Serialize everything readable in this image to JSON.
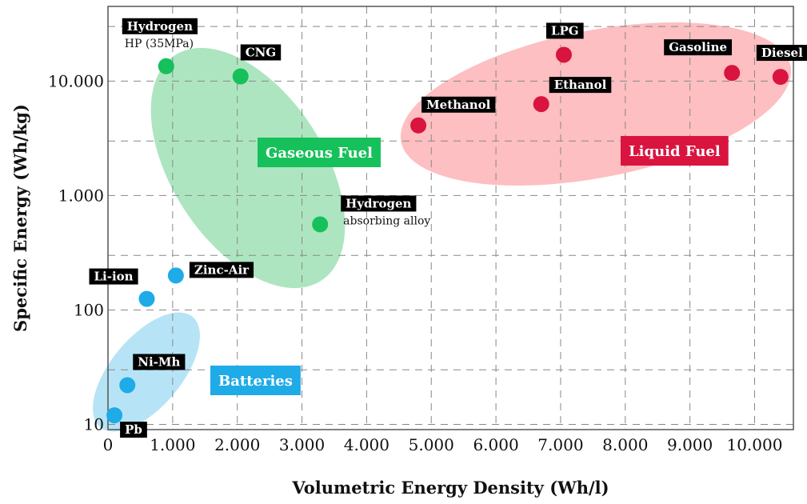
{
  "chart_data": {
    "type": "scatter",
    "xlabel": "Volumetric Energy Density (Wh/l)",
    "ylabel": "Specific Energy (Wh/kg)",
    "xlim": [
      0,
      10600
    ],
    "ylim": [
      9,
      45000
    ],
    "y_scale": "log",
    "x_ticks": [
      0,
      1000,
      2000,
      3000,
      4000,
      5000,
      6000,
      7000,
      8000,
      9000,
      10000
    ],
    "x_tick_labels": [
      "0",
      "1.000",
      "2.000",
      "3.000",
      "4.000",
      "5.000",
      "6.000",
      "7.000",
      "8.000",
      "9.000",
      "10.000"
    ],
    "y_ticks": [
      10,
      100,
      1000,
      10000
    ],
    "y_tick_labels": [
      "10",
      "100",
      "1.000",
      "10.000"
    ],
    "grid": true,
    "groups": [
      {
        "name": "Batteries",
        "color": "#1eabe8",
        "fill": "#a9dff5"
      },
      {
        "name": "Gaseous Fuel",
        "color": "#16c05a",
        "fill": "#9fe0b5"
      },
      {
        "name": "Liquid Fuel",
        "color": "#d9143e",
        "fill": "#fdb4b6"
      }
    ],
    "points": [
      {
        "label": "Hydrogen",
        "sublabel": "HP (35MPa)",
        "group": "Gaseous Fuel",
        "x": 900,
        "y": 13500
      },
      {
        "label": "CNG",
        "sublabel": "",
        "group": "Gaseous Fuel",
        "x": 2050,
        "y": 11000
      },
      {
        "label": "Hydrogen",
        "sublabel": "absorbing alloy",
        "group": "Gaseous Fuel",
        "x": 3280,
        "y": 560
      },
      {
        "label": "LPG",
        "sublabel": "",
        "group": "Liquid Fuel",
        "x": 7050,
        "y": 17000
      },
      {
        "label": "Gasoline",
        "sublabel": "",
        "group": "Liquid Fuel",
        "x": 9650,
        "y": 11800
      },
      {
        "label": "Diesel",
        "sublabel": "",
        "group": "Liquid Fuel",
        "x": 10400,
        "y": 10900
      },
      {
        "label": "Ethanol",
        "sublabel": "",
        "group": "Liquid Fuel",
        "x": 6700,
        "y": 6300
      },
      {
        "label": "Methanol",
        "sublabel": "",
        "group": "Liquid Fuel",
        "x": 4800,
        "y": 4100
      },
      {
        "label": "Zinc-Air",
        "sublabel": "",
        "group": "Batteries",
        "x": 1050,
        "y": 200
      },
      {
        "label": "Li-ion",
        "sublabel": "",
        "group": "Batteries",
        "x": 600,
        "y": 125
      },
      {
        "label": "Ni-Mh",
        "sublabel": "",
        "group": "Batteries",
        "x": 300,
        "y": 22
      },
      {
        "label": "Pb",
        "sublabel": "",
        "group": "Batteries",
        "x": 100,
        "y": 12
      }
    ]
  }
}
